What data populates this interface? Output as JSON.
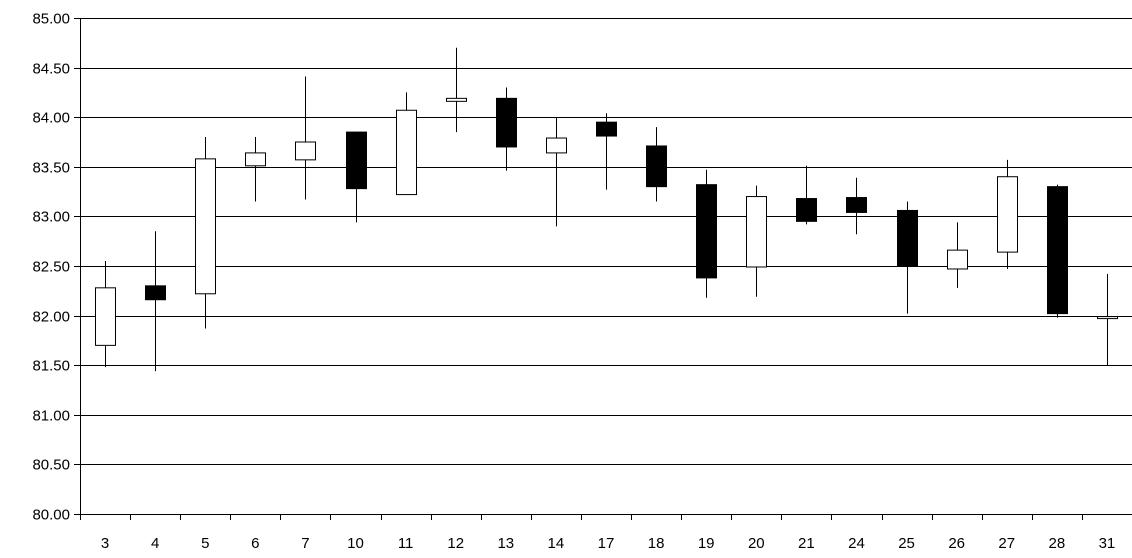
{
  "chart_data": {
    "type": "candlestick",
    "title": "",
    "xlabel": "",
    "ylabel": "",
    "ylim": [
      80.0,
      85.0
    ],
    "y_ticks": [
      "80.00",
      "80.50",
      "81.00",
      "81.50",
      "82.00",
      "82.50",
      "83.00",
      "83.50",
      "84.00",
      "84.50",
      "85.00"
    ],
    "grid": "horizontal",
    "legend": "none",
    "colors": {
      "up": "#ffffff",
      "down": "#000000",
      "line": "#000000"
    },
    "categories": [
      "3",
      "4",
      "5",
      "6",
      "7",
      "10",
      "11",
      "12",
      "13",
      "14",
      "17",
      "18",
      "19",
      "20",
      "21",
      "24",
      "25",
      "26",
      "27",
      "28",
      "31"
    ],
    "candles": [
      {
        "x": "3",
        "open": 81.7,
        "high": 82.55,
        "low": 81.48,
        "close": 82.28
      },
      {
        "x": "4",
        "open": 82.3,
        "high": 82.85,
        "low": 81.44,
        "close": 82.16
      },
      {
        "x": "5",
        "open": 82.22,
        "high": 83.8,
        "low": 81.87,
        "close": 83.58
      },
      {
        "x": "6",
        "open": 83.51,
        "high": 83.8,
        "low": 83.15,
        "close": 83.64
      },
      {
        "x": "7",
        "open": 83.57,
        "high": 84.41,
        "low": 83.17,
        "close": 83.75
      },
      {
        "x": "10",
        "open": 83.85,
        "high": 83.85,
        "low": 82.94,
        "close": 83.28
      },
      {
        "x": "11",
        "open": 83.22,
        "high": 84.25,
        "low": 83.22,
        "close": 84.07
      },
      {
        "x": "12",
        "open": 84.16,
        "high": 84.7,
        "low": 83.85,
        "close": 84.19
      },
      {
        "x": "13",
        "open": 84.19,
        "high": 84.3,
        "low": 83.46,
        "close": 83.7
      },
      {
        "x": "14",
        "open": 83.64,
        "high": 84.0,
        "low": 82.9,
        "close": 83.79
      },
      {
        "x": "17",
        "open": 83.95,
        "high": 84.04,
        "low": 83.27,
        "close": 83.81
      },
      {
        "x": "18",
        "open": 83.71,
        "high": 83.9,
        "low": 83.15,
        "close": 83.3
      },
      {
        "x": "19",
        "open": 83.32,
        "high": 83.47,
        "low": 82.18,
        "close": 82.38
      },
      {
        "x": "20",
        "open": 82.49,
        "high": 83.31,
        "low": 82.19,
        "close": 83.2
      },
      {
        "x": "21",
        "open": 83.18,
        "high": 83.51,
        "low": 82.92,
        "close": 82.95
      },
      {
        "x": "24",
        "open": 83.19,
        "high": 83.39,
        "low": 82.82,
        "close": 83.04
      },
      {
        "x": "25",
        "open": 83.06,
        "high": 83.15,
        "low": 82.02,
        "close": 82.5
      },
      {
        "x": "26",
        "open": 82.47,
        "high": 82.94,
        "low": 82.28,
        "close": 82.66
      },
      {
        "x": "27",
        "open": 82.64,
        "high": 83.57,
        "low": 82.47,
        "close": 83.4
      },
      {
        "x": "28",
        "open": 83.3,
        "high": 83.32,
        "low": 81.98,
        "close": 82.02
      },
      {
        "x": "31",
        "open": 81.97,
        "high": 82.42,
        "low": 81.5,
        "close": 81.99
      }
    ]
  }
}
